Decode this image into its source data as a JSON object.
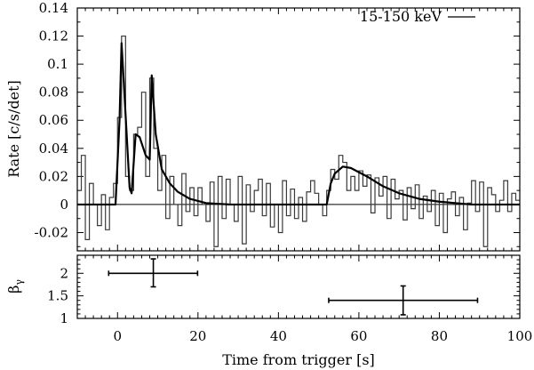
{
  "chart_data": [
    {
      "type": "line",
      "panel": "top",
      "title": "",
      "xlabel": "",
      "ylabel": "Rate [c/s/det]",
      "xlim": [
        -10,
        100
      ],
      "ylim": [
        -0.033,
        0.14
      ],
      "xticks": [
        0,
        20,
        40,
        60,
        80,
        100
      ],
      "yticks": [
        -0.02,
        0,
        0.02,
        0.04,
        0.06,
        0.08,
        0.1,
        0.12,
        0.14
      ],
      "ytick_labels": [
        "-0.02",
        "0",
        "0.02",
        "0.04",
        "0.06",
        "0.08",
        "0.1",
        "0.12",
        "0.14"
      ],
      "legend": {
        "position": "top-right",
        "entries": [
          "15-150 keV"
        ]
      },
      "grid": false,
      "light_curve": {
        "bin_start": -10,
        "bin_width": 1,
        "values": [
          0.01,
          0.035,
          -0.025,
          0.015,
          0.0,
          -0.015,
          0.007,
          -0.018,
          0.005,
          0.015,
          0.062,
          0.12,
          0.02,
          0.01,
          0.05,
          0.055,
          0.08,
          0.02,
          0.09,
          0.04,
          0.01,
          0.035,
          -0.01,
          0.02,
          0.0,
          -0.015,
          0.022,
          -0.005,
          0.012,
          -0.008,
          0.012,
          0.0,
          -0.012,
          0.016,
          -0.03,
          0.02,
          -0.01,
          0.018,
          0.0,
          -0.012,
          0.02,
          -0.028,
          0.014,
          -0.005,
          0.01,
          0.018,
          -0.008,
          0.015,
          -0.016,
          0.0,
          -0.02,
          0.017,
          -0.008,
          0.011,
          -0.01,
          0.005,
          -0.012,
          0.009,
          0.017,
          0.008,
          0.0,
          -0.008,
          0.01,
          0.025,
          0.018,
          0.035,
          0.03,
          0.01,
          0.02,
          0.01,
          0.024,
          0.013,
          0.021,
          -0.006,
          0.019,
          0.006,
          0.02,
          -0.01,
          0.018,
          0.004,
          0.01,
          -0.011,
          0.012,
          -0.003,
          0.014,
          -0.01,
          0.006,
          -0.005,
          0.01,
          -0.015,
          0.008,
          -0.02,
          0.004,
          0.009,
          -0.008,
          0.005,
          -0.018,
          0.001,
          0.017,
          -0.005,
          0.016,
          -0.03,
          0.012,
          0.007,
          -0.005,
          0.003,
          0.017,
          -0.005,
          0.008,
          0.003
        ]
      },
      "model": {
        "x": [
          -10,
          -0.5,
          0.5,
          1,
          1.5,
          3,
          3.5,
          4.5,
          5.5,
          7,
          8,
          8.5,
          9.5,
          11,
          13,
          15,
          18,
          22,
          28,
          52,
          53,
          54,
          56,
          58,
          62,
          66,
          70,
          75,
          80,
          88,
          100
        ],
        "y": [
          0,
          0,
          0.06,
          0.115,
          0.09,
          0.012,
          0.008,
          0.05,
          0.048,
          0.035,
          0.032,
          0.092,
          0.05,
          0.025,
          0.015,
          0.009,
          0.004,
          0.001,
          0,
          0,
          0.015,
          0.022,
          0.027,
          0.026,
          0.02,
          0.013,
          0.008,
          0.004,
          0.002,
          0,
          0
        ]
      }
    },
    {
      "type": "scatter",
      "panel": "bottom",
      "xlabel": "Time from trigger [s]",
      "ylabel": "βγ",
      "ylabel_main": "β",
      "ylabel_sub": "γ",
      "xlim": [
        -10,
        100
      ],
      "ylim": [
        1,
        2.4
      ],
      "xticks": [
        0,
        20,
        40,
        60,
        80,
        100
      ],
      "xtick_labels": [
        "0",
        "20",
        "40",
        "60",
        "80",
        "100"
      ],
      "yticks": [
        1,
        1.5,
        2
      ],
      "ytick_labels": [
        "1",
        "1.5",
        "2"
      ],
      "points": [
        {
          "x": 8.9,
          "xmin": -2.2,
          "xmax": 19.9,
          "y": 2.0,
          "ymin": 1.7,
          "ymax": 2.32
        },
        {
          "x": 71,
          "xmin": 52.5,
          "xmax": 89.5,
          "y": 1.4,
          "ymin": 1.08,
          "ymax": 1.72
        }
      ]
    }
  ]
}
